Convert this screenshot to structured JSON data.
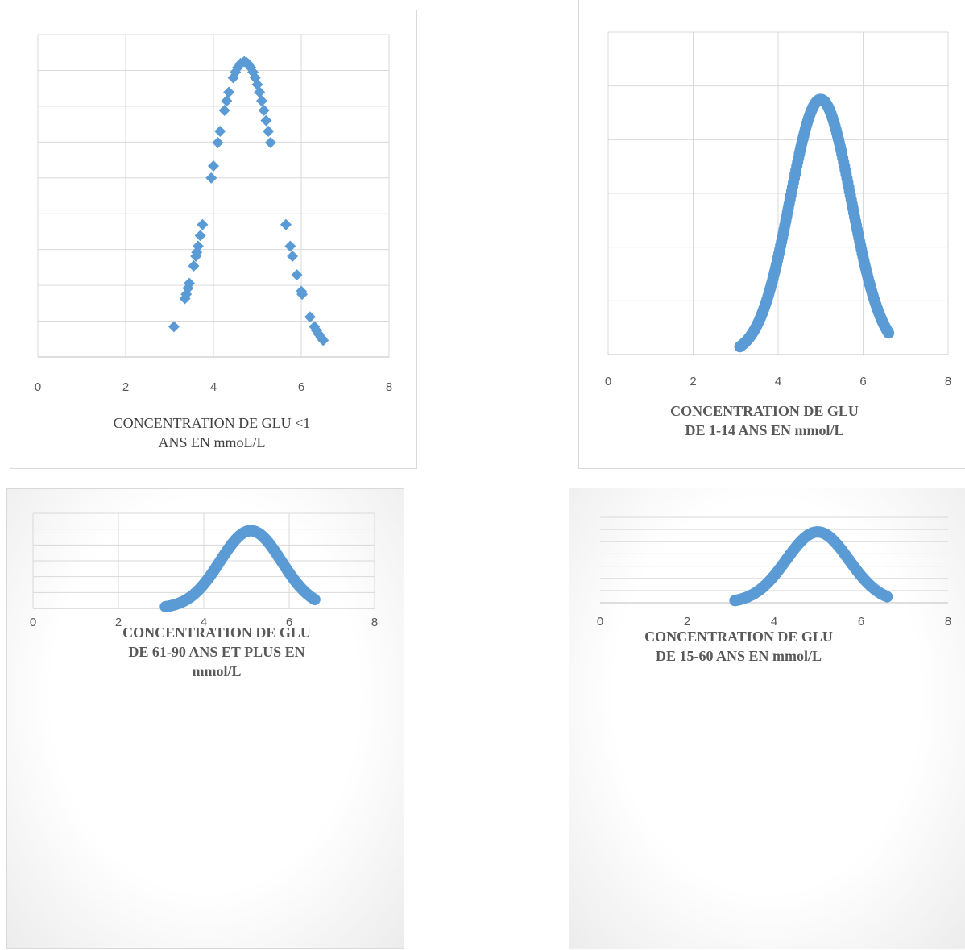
{
  "colors": {
    "series": "#5b9bd5",
    "grid": "#d9d9d9",
    "axis": "#bfbfbf",
    "tick_text": "#595959"
  },
  "chart_data": [
    {
      "type": "scatter",
      "marker": "diamond",
      "title": "CONCENTRATION DE GLU <1 ANS EN mmoL/L",
      "title_lines": [
        "CONCENTRATION DE GLU <1",
        "ANS EN mmoL/L"
      ],
      "title_style": "normal",
      "xlim": [
        0,
        8
      ],
      "x_ticks": [
        "0",
        "2",
        "4",
        "6",
        "8"
      ],
      "ylim": [
        0,
        9.5
      ],
      "y_grid_count": 9,
      "x_grid": true,
      "curve": {
        "mean": 4.7,
        "sd": 0.75,
        "peak": 8.7,
        "from": 3.1,
        "to": 6.5,
        "gap": [
          5.35,
          5.6
        ]
      }
    },
    {
      "type": "scatter",
      "marker": "circle",
      "title": "CONCENTRATION DE GLU DE 1-14 ANS EN mmol/L",
      "title_lines": [
        "CONCENTRATION DE GLU",
        "DE 1-14 ANS EN mmol/L"
      ],
      "title_style": "bold",
      "xlim": [
        0,
        8
      ],
      "x_ticks": [
        "0",
        "2",
        "4",
        "6",
        "8"
      ],
      "ylim": [
        0,
        6
      ],
      "y_grid_count": 6,
      "x_grid": true,
      "curve": {
        "mean": 5.0,
        "sd": 0.72,
        "peak": 4.75,
        "from": 3.1,
        "to": 6.6
      }
    },
    {
      "type": "scatter",
      "marker": "circle",
      "title": "CONCENTRATION DE GLU DE 61-90 ANS ET PLUS EN mmol/L",
      "title_lines": [
        "CONCENTRATION DE GLU",
        "DE 61-90 ANS ET PLUS EN",
        "mmol/L"
      ],
      "title_style": "bold",
      "xlim": [
        0,
        8
      ],
      "x_ticks": [
        "0",
        "2",
        "4",
        "6",
        "8"
      ],
      "ylim": [
        0,
        6
      ],
      "y_grid_count": 6,
      "x_grid": true,
      "curve": {
        "mean": 5.1,
        "sd": 0.72,
        "peak": 4.9,
        "from": 3.1,
        "to": 6.6
      }
    },
    {
      "type": "scatter",
      "marker": "circle",
      "title": "CONCENTRATION DE GLU DE 15-60 ANS EN mmol/L",
      "title_lines": [
        "CONCENTRATION DE GLU",
        "DE 15-60 ANS EN mmol/L"
      ],
      "title_style": "bold",
      "xlim": [
        0,
        8
      ],
      "x_ticks": [
        "0",
        "2",
        "4",
        "6",
        "8"
      ],
      "ylim": [
        0,
        7
      ],
      "y_grid_count": 7,
      "x_grid": false,
      "curve": {
        "mean": 5.0,
        "sd": 0.72,
        "peak": 5.8,
        "from": 3.1,
        "to": 6.6
      }
    }
  ]
}
